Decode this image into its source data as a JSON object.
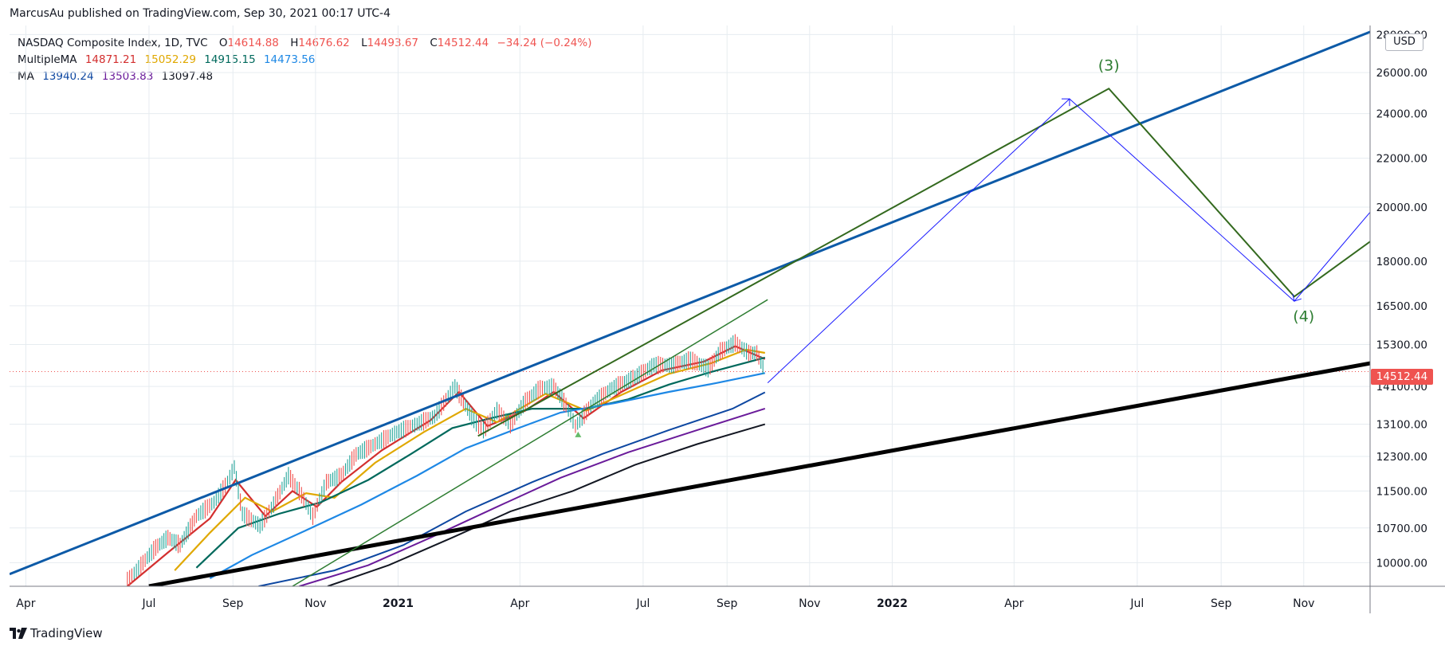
{
  "header": {
    "text": "MarcusAu published on TradingView.com, Sep 30, 2021 00:17 UTC-4"
  },
  "footer": {
    "brand": "TradingView",
    "logo_icon": "tradingview-logo-icon"
  },
  "legend": {
    "symbol": "NASDAQ Composite Index, 1D, TVC",
    "o_key": "O",
    "o_val": "14614.88",
    "h_key": "H",
    "h_val": "14676.62",
    "l_key": "L",
    "l_val": "14493.67",
    "c_key": "C",
    "c_val": "14512.44",
    "change": "−34.24 (−0.24%)",
    "multiple_ma_label": "MultipleMA",
    "multiple_ma_values": [
      "14871.21",
      "15052.29",
      "14915.15",
      "14473.56"
    ],
    "multiple_ma_colors": [
      "#d32f2f",
      "#e0a800",
      "#00695c",
      "#1e88e5"
    ],
    "ma_label": "MA",
    "ma_values": [
      "13940.24",
      "13503.83",
      "13097.48"
    ],
    "ma_colors": [
      "#0d47a1",
      "#6a1b9a",
      "#131722"
    ],
    "ohlc_color": "#ef5350"
  },
  "currency": "USD",
  "last_price": "14512.44",
  "chart_data": {
    "type": "line",
    "symbol": "NASDAQ Composite Index",
    "interval": "1D",
    "y_scale": "log",
    "ylim": [
      9550,
      28500
    ],
    "y_ticks": [
      "10000.00",
      "10700.00",
      "11500.00",
      "12300.00",
      "13100.00",
      "14100.00",
      "15300.00",
      "16500.00",
      "18000.00",
      "20000.00",
      "22000.00",
      "24000.00",
      "26000.00",
      "28000.00"
    ],
    "x_range": [
      "2020-03-20",
      "2022-12-20"
    ],
    "x_ticks": [
      {
        "label": "Apr",
        "date": "2020-04-01"
      },
      {
        "label": "Jul",
        "date": "2020-07-01"
      },
      {
        "label": "Sep",
        "date": "2020-09-01"
      },
      {
        "label": "Nov",
        "date": "2020-11-01"
      },
      {
        "label": "2021",
        "date": "2021-01-01",
        "bold": true
      },
      {
        "label": "Apr",
        "date": "2021-04-01"
      },
      {
        "label": "Jul",
        "date": "2021-07-01"
      },
      {
        "label": "Sep",
        "date": "2021-09-01"
      },
      {
        "label": "Nov",
        "date": "2021-11-01"
      },
      {
        "label": "2022",
        "date": "2022-01-01",
        "bold": true
      },
      {
        "label": "Apr",
        "date": "2022-04-01"
      },
      {
        "label": "Jul",
        "date": "2022-07-01"
      },
      {
        "label": "Sep",
        "date": "2022-09-01"
      },
      {
        "label": "Nov",
        "date": "2022-11-01"
      }
    ],
    "price_series": {
      "name": "NASDAQ Composite Index",
      "color": "#26a69a",
      "points": [
        [
          "2020-06-15",
          9650
        ],
        [
          "2020-06-25",
          9950
        ],
        [
          "2020-07-06",
          10300
        ],
        [
          "2020-07-15",
          10500
        ],
        [
          "2020-07-24",
          10350
        ],
        [
          "2020-08-05",
          10950
        ],
        [
          "2020-08-18",
          11250
        ],
        [
          "2020-08-28",
          11700
        ],
        [
          "2020-09-02",
          12050
        ],
        [
          "2020-09-08",
          11000
        ],
        [
          "2020-09-21",
          10750
        ],
        [
          "2020-10-01",
          11200
        ],
        [
          "2020-10-12",
          11850
        ],
        [
          "2020-10-20",
          11500
        ],
        [
          "2020-10-30",
          10950
        ],
        [
          "2020-11-09",
          11700
        ],
        [
          "2020-11-20",
          11850
        ],
        [
          "2020-12-01",
          12350
        ],
        [
          "2020-12-15",
          12600
        ],
        [
          "2020-12-31",
          12900
        ],
        [
          "2021-01-15",
          13100
        ],
        [
          "2021-01-28",
          13300
        ],
        [
          "2021-02-12",
          14100
        ],
        [
          "2021-02-26",
          13200
        ],
        [
          "2021-03-05",
          12950
        ],
        [
          "2021-03-15",
          13450
        ],
        [
          "2021-03-25",
          13100
        ],
        [
          "2021-04-05",
          13700
        ],
        [
          "2021-04-16",
          14050
        ],
        [
          "2021-04-26",
          14100
        ],
        [
          "2021-05-05",
          13600
        ],
        [
          "2021-05-12",
          13050
        ],
        [
          "2021-05-25",
          13650
        ],
        [
          "2021-06-08",
          14050
        ],
        [
          "2021-06-25",
          14350
        ],
        [
          "2021-07-09",
          14700
        ],
        [
          "2021-07-22",
          14700
        ],
        [
          "2021-08-05",
          14850
        ],
        [
          "2021-08-18",
          14600
        ],
        [
          "2021-08-27",
          15100
        ],
        [
          "2021-09-07",
          15350
        ],
        [
          "2021-09-17",
          15050
        ],
        [
          "2021-09-23",
          15050
        ],
        [
          "2021-09-29",
          14512.44
        ]
      ]
    },
    "moving_averages": [
      {
        "color": "#d32f2f",
        "points": [
          [
            "2020-06-15",
            9550
          ],
          [
            "2020-07-15",
            10200
          ],
          [
            "2020-08-15",
            10900
          ],
          [
            "2020-09-03",
            11750
          ],
          [
            "2020-09-25",
            10950
          ],
          [
            "2020-10-15",
            11500
          ],
          [
            "2020-11-02",
            11150
          ],
          [
            "2020-11-20",
            11700
          ],
          [
            "2020-12-20",
            12450
          ],
          [
            "2021-01-25",
            13200
          ],
          [
            "2021-02-15",
            13950
          ],
          [
            "2021-03-08",
            13050
          ],
          [
            "2021-04-05",
            13450
          ],
          [
            "2021-04-26",
            13950
          ],
          [
            "2021-05-18",
            13250
          ],
          [
            "2021-06-15",
            13950
          ],
          [
            "2021-07-15",
            14550
          ],
          [
            "2021-08-15",
            14800
          ],
          [
            "2021-09-07",
            15250
          ],
          [
            "2021-09-29",
            14871.21
          ]
        ]
      },
      {
        "color": "#e0a800",
        "points": [
          [
            "2020-07-20",
            9850
          ],
          [
            "2020-08-15",
            10600
          ],
          [
            "2020-09-10",
            11350
          ],
          [
            "2020-09-30",
            11050
          ],
          [
            "2020-10-25",
            11450
          ],
          [
            "2020-11-15",
            11350
          ],
          [
            "2020-12-15",
            12150
          ],
          [
            "2021-01-20",
            12900
          ],
          [
            "2021-02-20",
            13500
          ],
          [
            "2021-03-15",
            13150
          ],
          [
            "2021-04-20",
            13900
          ],
          [
            "2021-05-20",
            13450
          ],
          [
            "2021-06-20",
            13950
          ],
          [
            "2021-07-20",
            14450
          ],
          [
            "2021-08-20",
            14750
          ],
          [
            "2021-09-15",
            15150
          ],
          [
            "2021-09-29",
            15052.29
          ]
        ]
      },
      {
        "color": "#00695c",
        "points": [
          [
            "2020-08-05",
            9900
          ],
          [
            "2020-09-05",
            10700
          ],
          [
            "2020-10-05",
            11000
          ],
          [
            "2020-11-05",
            11250
          ],
          [
            "2020-12-10",
            11750
          ],
          [
            "2021-01-10",
            12350
          ],
          [
            "2021-02-10",
            13000
          ],
          [
            "2021-03-10",
            13250
          ],
          [
            "2021-04-10",
            13500
          ],
          [
            "2021-05-20",
            13500
          ],
          [
            "2021-06-20",
            13750
          ],
          [
            "2021-07-20",
            14150
          ],
          [
            "2021-08-20",
            14500
          ],
          [
            "2021-09-29",
            14915.15
          ]
        ]
      },
      {
        "color": "#1e88e5",
        "points": [
          [
            "2020-08-15",
            9700
          ],
          [
            "2020-09-15",
            10150
          ],
          [
            "2020-10-25",
            10650
          ],
          [
            "2020-12-05",
            11200
          ],
          [
            "2021-01-15",
            11850
          ],
          [
            "2021-02-20",
            12500
          ],
          [
            "2021-03-31",
            13000
          ],
          [
            "2021-05-01",
            13400
          ],
          [
            "2021-06-10",
            13650
          ],
          [
            "2021-07-20",
            13950
          ],
          [
            "2021-08-25",
            14200
          ],
          [
            "2021-09-29",
            14473.56
          ]
        ]
      },
      {
        "color": "#0d47a1",
        "points": [
          [
            "2020-09-20",
            9550
          ],
          [
            "2020-11-15",
            9850
          ],
          [
            "2021-01-05",
            10350
          ],
          [
            "2021-02-20",
            11050
          ],
          [
            "2021-04-10",
            11700
          ],
          [
            "2021-05-31",
            12350
          ],
          [
            "2021-07-20",
            12950
          ],
          [
            "2021-09-05",
            13500
          ],
          [
            "2021-09-29",
            13940.24
          ]
        ]
      },
      {
        "color": "#6a1b9a",
        "points": [
          [
            "2020-10-20",
            9550
          ],
          [
            "2020-12-10",
            9950
          ],
          [
            "2021-01-25",
            10500
          ],
          [
            "2021-03-15",
            11150
          ],
          [
            "2021-05-01",
            11800
          ],
          [
            "2021-06-20",
            12400
          ],
          [
            "2021-08-10",
            12950
          ],
          [
            "2021-09-29",
            13503.83
          ]
        ]
      },
      {
        "color": "#131722",
        "points": [
          [
            "2020-11-10",
            9550
          ],
          [
            "2020-12-25",
            9950
          ],
          [
            "2021-02-10",
            10500
          ],
          [
            "2021-03-25",
            11050
          ],
          [
            "2021-05-10",
            11500
          ],
          [
            "2021-06-25",
            12100
          ],
          [
            "2021-08-10",
            12600
          ],
          [
            "2021-09-29",
            13097.48
          ]
        ]
      }
    ],
    "trendlines": [
      {
        "name": "upper-channel-line",
        "color": "#0d5aa7",
        "width": 3,
        "points": [
          [
            "2020-03-20",
            9780
          ],
          [
            "2022-12-20",
            28150
          ]
        ]
      },
      {
        "name": "lower-support-line",
        "color": "#000000",
        "width": 5,
        "points": [
          [
            "2020-07-01",
            9550
          ],
          [
            "2022-12-20",
            14750
          ]
        ]
      },
      {
        "name": "green-channel-line",
        "color": "#2e7d32",
        "width": 1.5,
        "points": [
          [
            "2020-10-15",
            9550
          ],
          [
            "2021-10-01",
            16700
          ]
        ]
      },
      {
        "name": "wave-path-green",
        "color": "#33691e",
        "width": 2,
        "points": [
          [
            "2021-03-01",
            12800
          ],
          [
            "2022-06-10",
            25200
          ],
          [
            "2022-10-25",
            16800
          ],
          [
            "2022-12-20",
            18700
          ]
        ]
      },
      {
        "name": "wave-path-blue",
        "color": "#1a1aff",
        "width": 1,
        "points": [
          [
            "2021-10-01",
            14200
          ],
          [
            "2022-05-12",
            24700
          ],
          [
            "2022-10-25",
            16650
          ],
          [
            "2022-12-20",
            19800
          ]
        ]
      }
    ],
    "annotations": [
      {
        "text": "(3)",
        "date": "2022-06-10",
        "price": 26100,
        "color": "#2e7d32"
      },
      {
        "text": "(4)",
        "date": "2022-11-01",
        "price": 16000,
        "color": "#2e7d32"
      }
    ],
    "last_price_line": {
      "value": 14512.44,
      "color": "#ef5350"
    }
  }
}
